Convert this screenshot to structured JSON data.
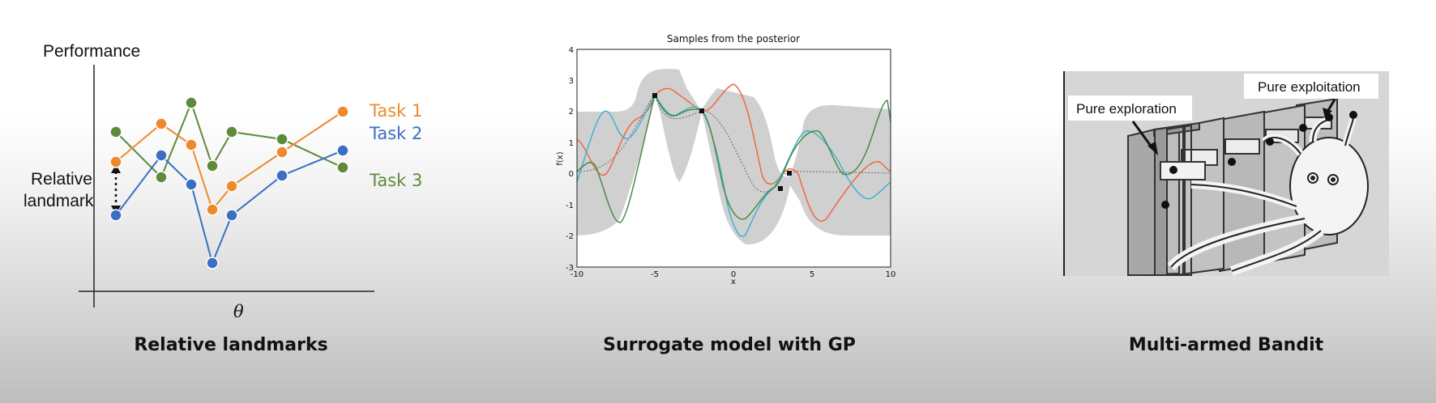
{
  "panels": {
    "landmarks": {
      "caption": "Relative landmarks",
      "ylabel": "Performance",
      "xlabel": "θ",
      "annotation_line1": "Relative",
      "annotation_line2": "landmark",
      "series": [
        {
          "name": "Task 1",
          "color": "#ee8a2d"
        },
        {
          "name": "Task 2",
          "color": "#3a6fc4"
        },
        {
          "name": "Task 3",
          "color": "#5f8a3b"
        }
      ]
    },
    "gp": {
      "caption": "Surrogate model with GP",
      "title": "Samples from the posterior",
      "ylabel": "f(x)",
      "xlabel": "x",
      "xticks": [
        "-10",
        "-5",
        "0",
        "5",
        "10"
      ],
      "yticks": [
        "4",
        "3",
        "2",
        "1",
        "0",
        "-1",
        "-2",
        "-3"
      ],
      "colors": {
        "band": "#d0d0d0",
        "red": "#f06a3c",
        "cyan": "#3fb3d0",
        "green": "#4a8a4a",
        "mean": "#666666"
      }
    },
    "bandit": {
      "caption": "Multi-armed Bandit",
      "label_left": "Pure exploration",
      "label_right": "Pure exploitation"
    }
  }
}
